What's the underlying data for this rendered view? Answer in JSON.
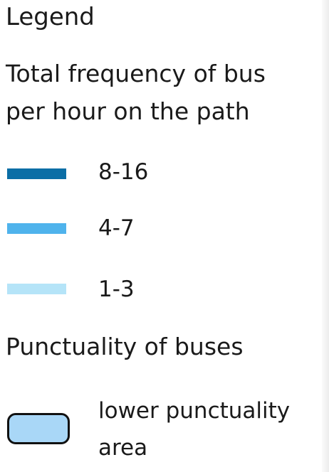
{
  "legend": {
    "title": "Legend",
    "sections": [
      {
        "title": "Total frequency of bus per hour on the path",
        "items": [
          {
            "label": "8-16",
            "color": "#0b6ea6"
          },
          {
            "label": "4-7",
            "color": "#4fb3ec"
          },
          {
            "label": "1-3",
            "color": "#b5e4f8"
          }
        ]
      },
      {
        "title": "Punctuality of buses",
        "items": [
          {
            "label": "lower punctuality area",
            "color": "#a9d7f7"
          }
        ]
      }
    ]
  }
}
